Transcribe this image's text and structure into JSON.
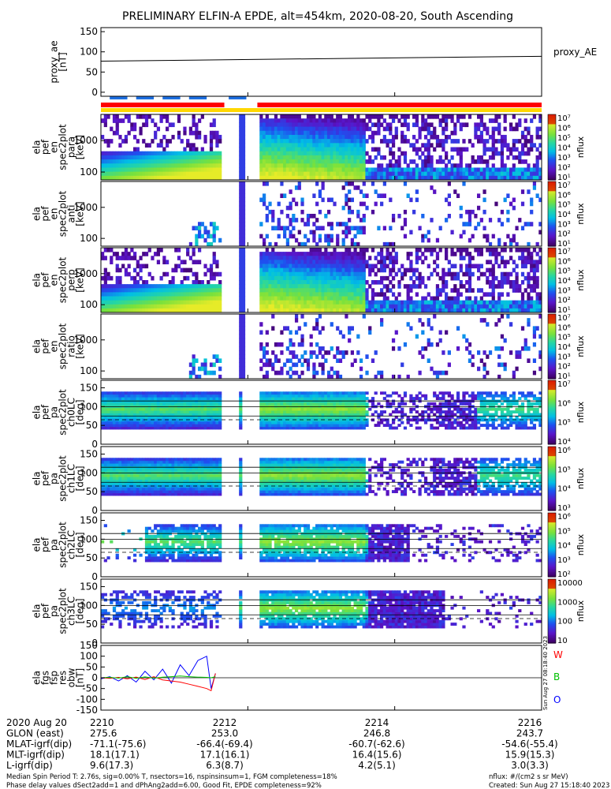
{
  "title": "PRELIMINARY ELFIN-A EPDE, alt=454km, 2020-08-20, South Ascending",
  "colors": {
    "bar_red": "#ff0000",
    "bar_yellow": "#ffd700",
    "bar_blue": "#1e6fe0",
    "obw_w": "#ff0000",
    "obw_b": "#00c000",
    "obw_o": "#0000ff"
  },
  "chart_data": [
    {
      "type": "line",
      "panel": "proxy_ae",
      "ylabel": [
        "proxy_ae",
        "[nT]"
      ],
      "yticks": [
        "150",
        "100",
        "50",
        "0"
      ],
      "ylim": [
        -10,
        160
      ],
      "legend": "proxy_AE",
      "x_minutes": [
        0,
        6
      ],
      "y": [
        77,
        89
      ]
    },
    {
      "type": "heatmap",
      "panel": "spec2plot_en_para",
      "ylabel": [
        "ela",
        "pef",
        "en",
        "spec2plot",
        "para",
        "[keV]"
      ],
      "yticks": [
        "1000",
        "100"
      ],
      "colorbar": {
        "label": "nflux",
        "ticks": [
          "10⁷",
          "10⁶",
          "10⁵",
          "10⁴",
          "10³",
          "10²",
          "10¹"
        ]
      }
    },
    {
      "type": "heatmap",
      "panel": "spec2plot_en_anti",
      "ylabel": [
        "ela",
        "pef",
        "en",
        "spec2plot",
        "anti",
        "[keV]"
      ],
      "yticks": [
        "1000",
        "100"
      ],
      "colorbar": {
        "label": "nflux",
        "ticks": [
          "10⁷",
          "10⁶",
          "10⁵",
          "10⁴",
          "10³",
          "10²",
          "10¹"
        ]
      }
    },
    {
      "type": "heatmap",
      "panel": "spec2plot_en_perp",
      "ylabel": [
        "ela",
        "pef",
        "en",
        "spec2plot",
        "perp",
        "[keV]"
      ],
      "yticks": [
        "1000",
        "100"
      ],
      "colorbar": {
        "label": "nflux",
        "ticks": [
          "10⁷",
          "10⁶",
          "10⁵",
          "10⁴",
          "10³",
          "10²",
          "10¹"
        ]
      }
    },
    {
      "type": "heatmap",
      "panel": "spec2plot_en_ratio",
      "ylabel": [
        "ela",
        "pef",
        "en",
        "spec2plot",
        "ratio",
        "[keV]"
      ],
      "yticks": [
        "1000",
        "100"
      ],
      "colorbar": {
        "label": "nflux",
        "ticks": [
          "10⁷",
          "10⁶",
          "10⁵",
          "10⁴",
          "10³",
          "10²",
          "10¹"
        ]
      }
    },
    {
      "type": "heatmap",
      "panel": "spec2plot_ch0LC",
      "ylabel": [
        "ela",
        "pef",
        "pa",
        "spec2plot",
        "ch0LC",
        "[deg]"
      ],
      "yticks": [
        "150",
        "100",
        "50",
        "0"
      ],
      "colorbar": {
        "label": "nflux",
        "ticks": [
          "10⁷",
          "10⁶",
          "10⁵",
          "10⁴"
        ]
      }
    },
    {
      "type": "heatmap",
      "panel": "spec2plot_ch1LC",
      "ylabel": [
        "ela",
        "pef",
        "pa",
        "spec2plot",
        "ch1LC",
        "[deg]"
      ],
      "yticks": [
        "150",
        "100",
        "50",
        "0"
      ],
      "colorbar": {
        "label": "nflux",
        "ticks": [
          "10⁶",
          "10⁵",
          "10⁴",
          "10³"
        ]
      }
    },
    {
      "type": "heatmap",
      "panel": "spec2plot_ch2LC",
      "ylabel": [
        "ela",
        "pef",
        "pa",
        "spec2plot",
        "ch2LC",
        "[deg]"
      ],
      "yticks": [
        "150",
        "100",
        "50",
        "0"
      ],
      "colorbar": {
        "label": "nflux",
        "ticks": [
          "10⁶",
          "10⁵",
          "10⁴",
          "10³",
          "10²"
        ]
      }
    },
    {
      "type": "heatmap",
      "panel": "spec2plot_ch3LC",
      "ylabel": [
        "ela",
        "pef",
        "pa",
        "spec2plot",
        "ch3LC",
        "[deg]"
      ],
      "yticks": [
        "150",
        "100",
        "50",
        "0"
      ],
      "colorbar": {
        "label": "nflux",
        "ticks": [
          "10000",
          "1000",
          "100",
          "10"
        ]
      }
    },
    {
      "type": "line",
      "panel": "fgs_fsp_res_obw",
      "ylabel": [
        "ela",
        "fgs",
        "fsp",
        "res",
        "obw",
        "[nT]"
      ],
      "yticks": [
        "150",
        "100",
        "50",
        "0",
        "-50",
        "-100",
        "-150"
      ],
      "ylim": [
        -150,
        150
      ],
      "legend": [
        "W",
        "B",
        "O"
      ],
      "stamp": "Sun Aug 27 08:18:40 2023"
    }
  ],
  "footer": {
    "rows": [
      [
        "2020 Aug 20",
        "2210",
        "2212",
        "2214",
        "2216"
      ],
      [
        "GLON (east)",
        "275.6",
        "253.0",
        "246.8",
        "243.7"
      ],
      [
        "MLAT-igrf(dip)",
        "-71.1(-75.6)",
        "-66.4(-69.4)",
        "-60.7(-62.6)",
        "-54.6(-55.4)"
      ],
      [
        "MLT-igrf(dip)",
        "18.1(17.1)",
        "17.1(16.1)",
        "16.4(15.6)",
        "15.9(15.3)"
      ],
      [
        "L-igrf(dip)",
        "9.6(17.3)",
        "6.3(8.7)",
        "4.2(5.1)",
        "3.0(3.3)"
      ]
    ],
    "note1": "Median Spin Period T: 2.76s, sig=0.00% T, nsectors=16, nspinsinsum=1, FGM completeness=18%",
    "note2": "Phase delay values dSect2add=1 and dPhAng2add=6.00, Good Fit, EPDE completeness=92%",
    "nflux_units": "nflux: #/(cm2 s sr MeV)",
    "created": "Created: Sun Aug 27 15:18:40 2023"
  }
}
